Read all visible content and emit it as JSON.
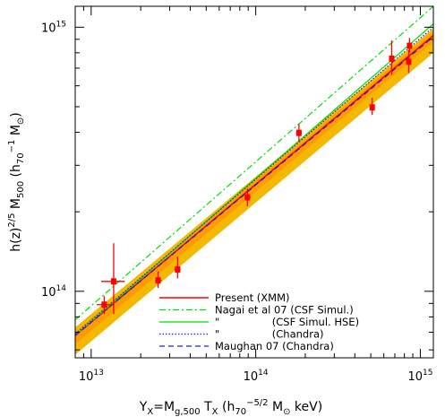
{
  "chart_data": {
    "type": "scatter",
    "scale": {
      "x": "log",
      "y": "log"
    },
    "xlim": [
      8000000000000.0,
      1200000000000000.0
    ],
    "ylim": [
      56000000000000.0,
      1200000000000000.0
    ],
    "x_ticks": [
      {
        "value": 10000000000000.0,
        "base": "10",
        "exp": "13"
      },
      {
        "value": 100000000000000.0,
        "base": "10",
        "exp": "14"
      },
      {
        "value": 1000000000000000.0,
        "base": "10",
        "exp": "15"
      }
    ],
    "y_ticks": [
      {
        "value": 100000000000000.0,
        "base": "10",
        "exp": "14"
      },
      {
        "value": 1000000000000000.0,
        "base": "10",
        "exp": "15"
      }
    ],
    "xlabel": "Y_X=M_g,500 T_X (h_70^-5/2 M_⊙ keV)",
    "ylabel": "h(z)^2/5 M_500 (h_70^-1 M_⊙)",
    "xlabel_parts": {
      "y": "Y",
      "x_sub": "X",
      "eq_m": "=M",
      "g_sub": "g,500",
      "t": " T",
      "x2_sub": "X",
      "paren": " (h",
      "seventy": "70",
      "minus_exp": "−5/2",
      "m": " M",
      "sun": "⊙",
      "end": " keV)"
    },
    "ylabel_parts": {
      "h": "h(z)",
      "exp": "2/5",
      "m": " M",
      "sub500": "500",
      "paren": " (h",
      "seventy": "70",
      "minus1": "−1",
      "m2": " M",
      "sun": "⊙",
      "close": ")"
    },
    "points": [
      {
        "x": 12000000000000.0,
        "y": 89000000000000.0,
        "xerr": [
          10800000000000.0,
          13800000000000.0
        ],
        "yerr": [
          82000000000000.0,
          96000000000000.0
        ]
      },
      {
        "x": 13700000000000.0,
        "y": 109000000000000.0,
        "xerr": [
          11500000000000.0,
          16000000000000.0
        ],
        "yerr": [
          82000000000000.0,
          152000000000000.0
        ]
      },
      {
        "x": 25500000000000.0,
        "y": 110000000000000.0,
        "xerr": [
          24500000000000.0,
          26800000000000.0
        ],
        "yerr": [
          103000000000000.0,
          119000000000000.0
        ]
      },
      {
        "x": 33500000000000.0,
        "y": 121000000000000.0,
        "xerr": [
          32000000000000.0,
          35000000000000.0
        ],
        "yerr": [
          112000000000000.0,
          135000000000000.0
        ]
      },
      {
        "x": 89000000000000.0,
        "y": 227000000000000.0,
        "xerr": [
          85000000000000.0,
          93000000000000.0
        ],
        "yerr": [
          210000000000000.0,
          245000000000000.0
        ]
      },
      {
        "x": 183000000000000.0,
        "y": 398000000000000.0,
        "xerr": [
          176000000000000.0,
          190000000000000.0
        ],
        "yerr": [
          370000000000000.0,
          430000000000000.0
        ]
      },
      {
        "x": 510000000000000.0,
        "y": 497000000000000.0,
        "xerr": [
          495000000000000.0,
          525000000000000.0
        ],
        "yerr": [
          465000000000000.0,
          540000000000000.0
        ]
      },
      {
        "x": 670000000000000.0,
        "y": 760000000000000.0,
        "xerr": [
          650000000000000.0,
          690000000000000.0
        ],
        "yerr": [
          660000000000000.0,
          890000000000000.0
        ]
      },
      {
        "x": 850000000000000.0,
        "y": 740000000000000.0,
        "xerr": [
          825000000000000.0,
          875000000000000.0
        ],
        "yerr": [
          670000000000000.0,
          820000000000000.0
        ]
      },
      {
        "x": 860000000000000.0,
        "y": 850000000000000.0,
        "xerr": [
          835000000000000.0,
          885000000000000.0
        ],
        "yerr": [
          800000000000000.0,
          910000000000000.0
        ]
      }
    ],
    "fits": [
      {
        "name": "Present (XMM)",
        "color": "#ff0000",
        "dash": "",
        "width": 1.5,
        "x0": 8000000000000.0,
        "y0": 68000000000000.0,
        "x1": 1200000000000000.0,
        "y1": 930000000000000.0
      },
      {
        "name": "Nagai et al 07 (CSF Simul.)",
        "color": "#00dd00",
        "dash": "7,3,2,3",
        "width": 1.2,
        "x0": 8000000000000.0,
        "y0": 78000000000000.0,
        "x1": 1200000000000000.0,
        "y1": 1200000000000000.0
      },
      {
        "name": "\"                (CSF Simul. HSE)",
        "color": "#00dd00",
        "dash": "",
        "width": 1.2,
        "x0": 8000000000000.0,
        "y0": 68000000000000.0,
        "x1": 1200000000000000.0,
        "y1": 1030000000000000.0
      },
      {
        "name": "\"                (Chandra)",
        "color": "#2222dd",
        "dash": "1.5,2",
        "width": 1.2,
        "x0": 8000000000000.0,
        "y0": 69000000000000.0,
        "x1": 1200000000000000.0,
        "y1": 1000000000000000.0
      },
      {
        "name": "Maughan 07 (Chandra)",
        "color": "#2222dd",
        "dash": "6,4",
        "width": 1.3,
        "x0": 8000000000000.0,
        "y0": 68000000000000.0,
        "x1": 1200000000000000.0,
        "y1": 920000000000000.0
      }
    ],
    "bands": [
      {
        "color": "#f5b800",
        "x0": 8000000000000.0,
        "lo0": 57500000000000.0,
        "hi0": 73000000000000.0,
        "x1": 1200000000000000.0,
        "lo1": 800000000000000.0,
        "hi1": 990000000000000.0
      },
      {
        "color": "#ff9a00",
        "x0": 8000000000000.0,
        "lo0": 63000000000000.0,
        "hi0": 70000000000000.0,
        "x1": 1200000000000000.0,
        "lo1": 880000000000000.0,
        "hi1": 960000000000000.0
      }
    ],
    "legend": [
      {
        "label": "Present (XMM)",
        "color": "#ff0000",
        "dash": "",
        "width": 1.5
      },
      {
        "label": "Nagai et al 07 (CSF Simul.)",
        "color": "#00dd00",
        "dash": "7,3,2,3",
        "width": 1.2
      },
      {
        "label": "\"                (CSF Simul. HSE)",
        "color": "#00dd00",
        "dash": "",
        "width": 1.2
      },
      {
        "label": "\"                (Chandra)",
        "color": "#2222dd",
        "dash": "1.5,2",
        "width": 1.2
      },
      {
        "label": "Maughan 07 (Chandra)",
        "color": "#2222dd",
        "dash": "6,4",
        "width": 1.3
      }
    ],
    "legend_position": "bottom-right",
    "point_color": "#ff0000"
  }
}
